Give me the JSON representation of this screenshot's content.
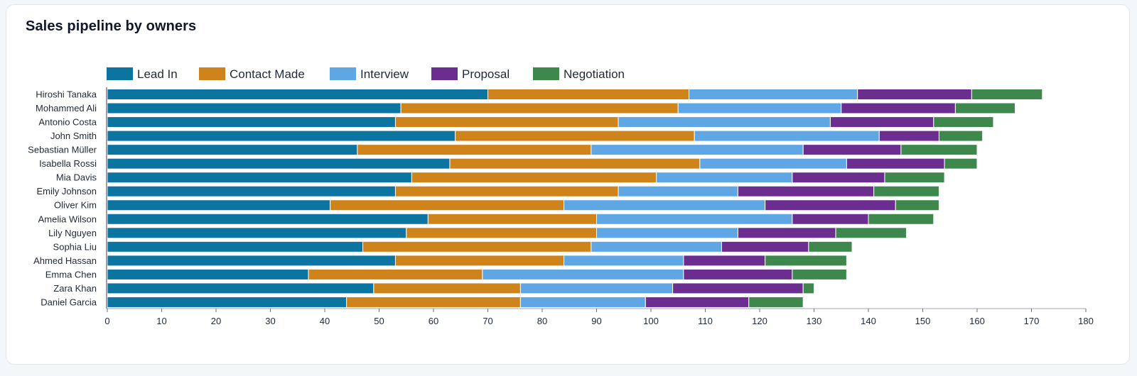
{
  "chart_data": {
    "type": "bar",
    "orientation": "horizontal",
    "stacked": true,
    "title": "Sales pipeline by owners",
    "xlabel": "",
    "ylabel": "",
    "xlim": [
      0,
      180
    ],
    "x_ticks": [
      0,
      10,
      20,
      30,
      40,
      50,
      60,
      70,
      80,
      90,
      100,
      110,
      120,
      130,
      140,
      150,
      160,
      170,
      180
    ],
    "legend_position": "top-left",
    "grid": false,
    "categories": [
      "Hiroshi Tanaka",
      "Mohammed Ali",
      "Antonio Costa",
      "John Smith",
      "Sebastian Müller",
      "Isabella Rossi",
      "Mia Davis",
      "Emily Johnson",
      "Oliver Kim",
      "Amelia Wilson",
      "Lily Nguyen",
      "Sophia Liu",
      "Ahmed Hassan",
      "Emma Chen",
      "Zara Khan",
      "Daniel Garcia"
    ],
    "series": [
      {
        "name": "Lead In",
        "color": "#0b74a0",
        "values": [
          70,
          54,
          53,
          64,
          46,
          63,
          56,
          53,
          41,
          59,
          55,
          47,
          53,
          37,
          49,
          44
        ]
      },
      {
        "name": "Contact Made",
        "color": "#cf831b",
        "values": [
          37,
          51,
          41,
          44,
          43,
          46,
          45,
          41,
          43,
          31,
          35,
          42,
          31,
          32,
          27,
          32
        ]
      },
      {
        "name": "Interview",
        "color": "#5ea6e4",
        "values": [
          31,
          30,
          39,
          34,
          39,
          27,
          25,
          22,
          37,
          36,
          26,
          24,
          22,
          37,
          28,
          23
        ]
      },
      {
        "name": "Proposal",
        "color": "#6b2d8f",
        "values": [
          21,
          21,
          19,
          11,
          18,
          18,
          17,
          25,
          24,
          14,
          18,
          16,
          15,
          20,
          24,
          19
        ]
      },
      {
        "name": "Negotiation",
        "color": "#3f884d",
        "values": [
          13,
          11,
          11,
          8,
          14,
          6,
          11,
          12,
          8,
          12,
          13,
          8,
          15,
          10,
          2,
          10
        ]
      }
    ]
  }
}
